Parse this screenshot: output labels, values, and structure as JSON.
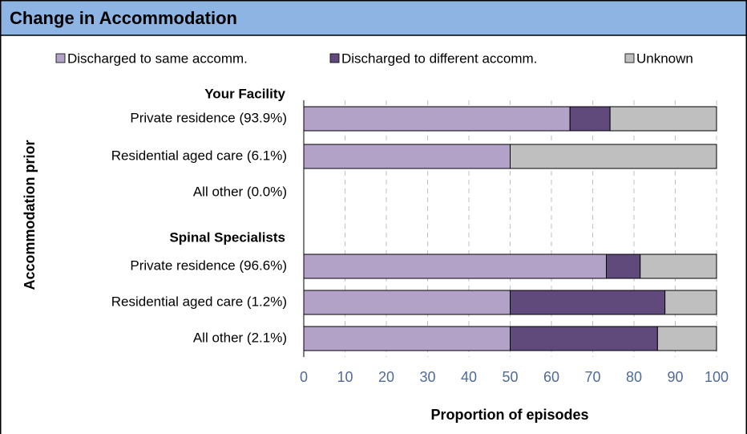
{
  "chart_data": {
    "type": "stacked-barh",
    "title": "Change in Accommodation",
    "xlabel": "Proportion of episodes",
    "ylabel": "Accommodation prior",
    "groups": [
      {
        "label": "Your Facility",
        "categories": [
          "Private residence (93.9%)",
          "Residential aged care (6.1%)",
          "All other (0.0%)"
        ]
      },
      {
        "label": "Spinal Specialists",
        "categories": [
          "Private residence (96.6%)",
          "Residential aged care (1.2%)",
          "All other (2.1%)"
        ]
      }
    ],
    "series": [
      {
        "name": "Discharged to same accomm.",
        "color": "#b3a2c7",
        "values": [
          64.5,
          50,
          null,
          73.3,
          50,
          50
        ]
      },
      {
        "name": "Discharged to different accomm.",
        "color": "#604a7b",
        "values": [
          9.7,
          0,
          null,
          8.2,
          37.5,
          35.7
        ]
      },
      {
        "name": "Unknown",
        "color": "#bfbfbf",
        "values": [
          25.8,
          50,
          null,
          18.5,
          12.5,
          14.3
        ]
      }
    ],
    "xlim": [
      0,
      100
    ],
    "xticks": [
      0,
      10,
      20,
      30,
      40,
      50,
      60,
      70,
      80,
      90,
      100
    ],
    "grid": true
  }
}
